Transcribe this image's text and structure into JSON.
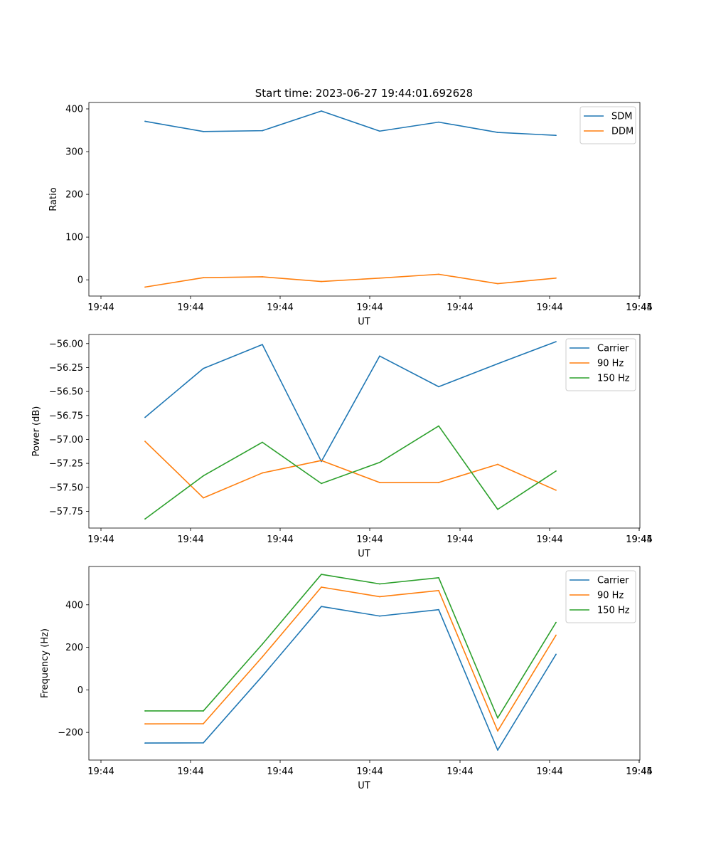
{
  "figure": {
    "title": "Start time: 2023-06-27 19:44:01.692628"
  },
  "colors": {
    "blue": "#1f77b4",
    "orange": "#ff7f0e",
    "green": "#2ca02c"
  },
  "chart_data": [
    {
      "type": "line",
      "title": "Start time: 2023-06-27 19:44:01.692628",
      "xlabel": "UT",
      "ylabel": "Ratio",
      "x_tick_labels": [
        "19:44",
        "19:44",
        "19:44",
        "19:44",
        "19:44",
        "19:44",
        "19:44",
        "19:45"
      ],
      "y_ticks": [
        0,
        100,
        200,
        300,
        400
      ],
      "y_tick_labels": [
        "0",
        "100",
        "200",
        "300",
        "400"
      ],
      "ylim": [
        -38,
        415
      ],
      "legend_position": "top-right",
      "x": [
        1,
        2,
        3,
        4,
        5,
        6,
        7,
        8
      ],
      "series": [
        {
          "name": "SDM",
          "color": "#1f77b4",
          "values": [
            371,
            347,
            349,
            395,
            348,
            369,
            345,
            338
          ]
        },
        {
          "name": "DDM",
          "color": "#ff7f0e",
          "values": [
            -17,
            5,
            7,
            -4,
            4,
            13,
            -9,
            4
          ]
        }
      ]
    },
    {
      "type": "line",
      "title": "",
      "xlabel": "UT",
      "ylabel": "Power (dB)",
      "x_tick_labels": [
        "19:44",
        "19:44",
        "19:44",
        "19:44",
        "19:44",
        "19:44",
        "19:44",
        "19:45"
      ],
      "y_ticks": [
        -57.75,
        -57.5,
        -57.25,
        -57.0,
        -56.75,
        -56.5,
        -56.25,
        -56.0
      ],
      "y_tick_labels": [
        "−57.75",
        "−57.50",
        "−57.25",
        "−57.00",
        "−56.75",
        "−56.50",
        "−56.25",
        "−56.00"
      ],
      "ylim": [
        -57.925,
        -55.905
      ],
      "legend_position": "top-right",
      "x": [
        1,
        2,
        3,
        4,
        5,
        6,
        7,
        8
      ],
      "series": [
        {
          "name": "Carrier",
          "color": "#1f77b4",
          "values": [
            -56.77,
            -56.26,
            -56.01,
            -57.23,
            -56.13,
            -56.45,
            -56.21,
            -55.98
          ]
        },
        {
          "name": "90 Hz",
          "color": "#ff7f0e",
          "values": [
            -57.02,
            -57.61,
            -57.35,
            -57.22,
            -57.45,
            -57.45,
            -57.26,
            -57.53
          ]
        },
        {
          "name": "150 Hz",
          "color": "#2ca02c",
          "values": [
            -57.83,
            -57.38,
            -57.03,
            -57.46,
            -57.24,
            -56.86,
            -57.73,
            -57.33
          ]
        }
      ]
    },
    {
      "type": "line",
      "title": "",
      "xlabel": "UT",
      "ylabel": "Frequency (Hz)",
      "x_tick_labels": [
        "19:44",
        "19:44",
        "19:44",
        "19:44",
        "19:44",
        "19:44",
        "19:44",
        "19:45"
      ],
      "y_ticks": [
        -200,
        0,
        200,
        400
      ],
      "y_tick_labels": [
        "−200",
        "0",
        "200",
        "400"
      ],
      "ylim": [
        -330,
        580
      ],
      "legend_position": "top-right",
      "x": [
        1,
        2,
        3,
        4,
        5,
        6,
        7,
        8
      ],
      "series": [
        {
          "name": "Carrier",
          "color": "#1f77b4",
          "values": [
            -250,
            -249,
            65,
            392,
            347,
            377,
            -283,
            167
          ]
        },
        {
          "name": "90 Hz",
          "color": "#ff7f0e",
          "values": [
            -160,
            -159,
            155,
            483,
            438,
            467,
            -193,
            257
          ]
        },
        {
          "name": "150 Hz",
          "color": "#2ca02c",
          "values": [
            -99,
            -99,
            215,
            543,
            498,
            527,
            -132,
            317
          ]
        }
      ]
    }
  ]
}
